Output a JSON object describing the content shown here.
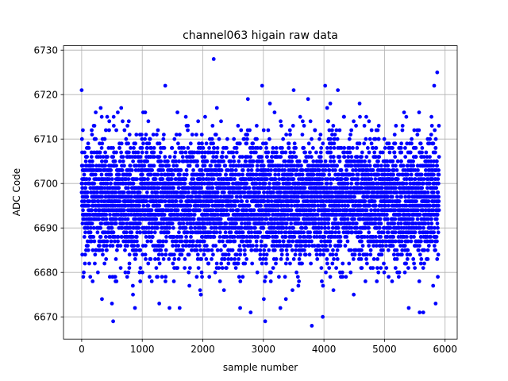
{
  "chart_data": {
    "type": "scatter",
    "title": "channel063 higain raw data",
    "xlabel": "sample number",
    "ylabel": "ADC Code",
    "xlim": [
      -300,
      6200
    ],
    "ylim": [
      6665,
      6731
    ],
    "xticks": [
      0,
      1000,
      2000,
      3000,
      4000,
      5000,
      6000
    ],
    "yticks": [
      6670,
      6680,
      6690,
      6700,
      6710,
      6720,
      6730
    ],
    "grid": true,
    "point_color": "#0000ff",
    "series": [
      {
        "n_samples": 5900,
        "x_range": [
          0,
          5900
        ],
        "core_range": [
          6685,
          6708
        ],
        "center": 6696,
        "notable_points": [
          {
            "x": 2180,
            "y": 6728
          },
          {
            "x": 5870,
            "y": 6725
          },
          {
            "x": 0,
            "y": 6721
          },
          {
            "x": 1380,
            "y": 6722
          },
          {
            "x": 2980,
            "y": 6722
          },
          {
            "x": 4020,
            "y": 6722
          },
          {
            "x": 5820,
            "y": 6722
          },
          {
            "x": 3500,
            "y": 6721
          },
          {
            "x": 4230,
            "y": 6721
          },
          {
            "x": 520,
            "y": 6669
          },
          {
            "x": 3030,
            "y": 6669
          },
          {
            "x": 3800,
            "y": 6668
          },
          {
            "x": 3980,
            "y": 6670
          },
          {
            "x": 2790,
            "y": 6671
          },
          {
            "x": 5640,
            "y": 6671
          },
          {
            "x": 5580,
            "y": 6671
          },
          {
            "x": 500,
            "y": 6673
          },
          {
            "x": 1450,
            "y": 6672
          },
          {
            "x": 880,
            "y": 6672
          },
          {
            "x": 3280,
            "y": 6672
          },
          {
            "x": 5400,
            "y": 6672
          }
        ]
      }
    ]
  }
}
